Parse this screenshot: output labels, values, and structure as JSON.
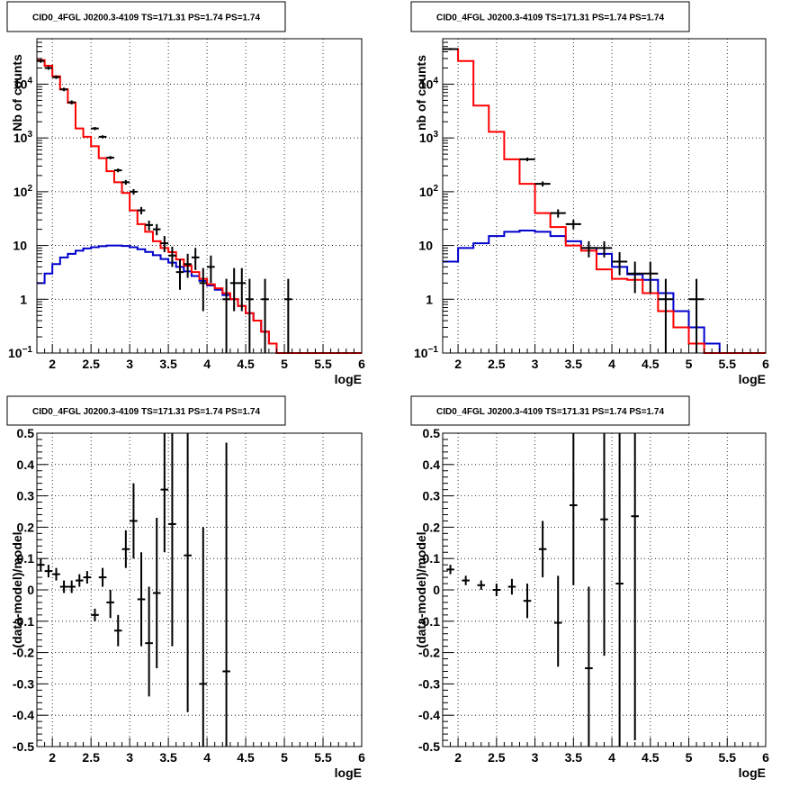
{
  "colors": {
    "data": "#000000",
    "total_model": "#ff0000",
    "component_model": "#0000cc",
    "grid": "#000000",
    "frame": "#000000"
  },
  "chart_data": [
    {
      "type": "line",
      "title": "CID0_4FGL J0200.3-4109 TS=171.31 PS=1.74 PS=1.74",
      "xlabel": "logE",
      "ylabel": "Nb of counts",
      "xlim": [
        1.8,
        6
      ],
      "ylim": [
        0.1,
        70000
      ],
      "log_y": true,
      "grid": true,
      "x_ticks": [
        "2",
        "2.5",
        "3",
        "3.5",
        "4",
        "4.5",
        "5",
        "5.5",
        "6"
      ],
      "y_ticks": [
        "10⁻¹",
        "1",
        "10",
        "10²",
        "10³",
        "10⁴"
      ],
      "total_model": {
        "edges": [
          1.8,
          1.9,
          2.0,
          2.1,
          2.2,
          2.3,
          2.4,
          2.5,
          2.6,
          2.7,
          2.8,
          2.9,
          3.0,
          3.1,
          3.2,
          3.3,
          3.4,
          3.5,
          3.6,
          3.7,
          3.8,
          3.9,
          4.0,
          4.1,
          4.2,
          4.3,
          4.4,
          4.5,
          4.6,
          4.7,
          4.8,
          4.9,
          5.0,
          5.1,
          5.2,
          5.3,
          5.4,
          5.5,
          5.6,
          5.7,
          5.8,
          5.9,
          6.0
        ],
        "values": [
          28000,
          22000,
          14000,
          8000,
          4500,
          1500,
          1050,
          700,
          420,
          240,
          150,
          95,
          45,
          25,
          18,
          12,
          9,
          7.5,
          5.5,
          4.2,
          3.2,
          2.4,
          1.9,
          1.6,
          1.3,
          1.0,
          0.75,
          0.55,
          0.4,
          0.25,
          0.15,
          0.1,
          0.1,
          0.1,
          0.1,
          0.1,
          0.1,
          0.1,
          0.1,
          0.1,
          0.1,
          0.1
        ]
      },
      "component_model": {
        "edges": [
          1.8,
          1.9,
          2.0,
          2.1,
          2.2,
          2.3,
          2.4,
          2.5,
          2.6,
          2.7,
          2.8,
          2.9,
          3.0,
          3.1,
          3.2,
          3.3,
          3.4,
          3.5,
          3.6,
          3.7,
          3.8,
          3.9,
          4.0,
          4.1,
          4.2,
          4.3,
          4.4,
          4.5,
          4.6,
          4.7,
          4.8,
          4.9,
          5.0,
          5.1,
          5.2,
          5.3,
          5.4,
          5.5,
          5.6,
          5.7,
          5.8,
          5.9,
          6.0
        ],
        "values": [
          2.0,
          3.0,
          4.5,
          6.0,
          7.0,
          8.0,
          8.8,
          9.3,
          9.7,
          10.0,
          10.0,
          9.8,
          9.3,
          8.5,
          7.6,
          6.6,
          5.6,
          4.8,
          4.0,
          3.3,
          2.7,
          2.2,
          1.8,
          1.5,
          1.2,
          1.0,
          0.75,
          0.55,
          0.4,
          0.25,
          0.15,
          0.1,
          0.1,
          0.1,
          0.1,
          0.1,
          0.1,
          0.1,
          0.1,
          0.1,
          0.1,
          0.1
        ]
      },
      "points": [
        {
          "x": 1.85,
          "y": 27000,
          "ylo": 25000,
          "yhi": 29000
        },
        {
          "x": 1.95,
          "y": 20000,
          "ylo": 18500,
          "yhi": 21500
        },
        {
          "x": 2.05,
          "y": 13500,
          "ylo": 12500,
          "yhi": 14500
        },
        {
          "x": 2.15,
          "y": 8000,
          "ylo": 7400,
          "yhi": 8600
        },
        {
          "x": 2.25,
          "y": 4600,
          "ylo": 4200,
          "yhi": 5000
        },
        {
          "x": 2.55,
          "y": 1500,
          "ylo": 1400,
          "yhi": 1600
        },
        {
          "x": 2.65,
          "y": 1050,
          "ylo": 980,
          "yhi": 1120
        },
        {
          "x": 2.75,
          "y": 430,
          "ylo": 400,
          "yhi": 460
        },
        {
          "x": 2.85,
          "y": 250,
          "ylo": 230,
          "yhi": 270
        },
        {
          "x": 2.95,
          "y": 150,
          "ylo": 135,
          "yhi": 165
        },
        {
          "x": 3.05,
          "y": 100,
          "ylo": 88,
          "yhi": 112
        },
        {
          "x": 3.15,
          "y": 45,
          "ylo": 38,
          "yhi": 52
        },
        {
          "x": 3.25,
          "y": 24,
          "ylo": 19,
          "yhi": 29
        },
        {
          "x": 3.35,
          "y": 20,
          "ylo": 15.5,
          "yhi": 25
        },
        {
          "x": 3.45,
          "y": 11,
          "ylo": 7.5,
          "yhi": 15
        },
        {
          "x": 3.55,
          "y": 6.5,
          "ylo": 4,
          "yhi": 9.5
        },
        {
          "x": 3.65,
          "y": 3.2,
          "ylo": 1.5,
          "yhi": 5.5
        },
        {
          "x": 3.75,
          "y": 4.5,
          "ylo": 2.5,
          "yhi": 7
        },
        {
          "x": 3.85,
          "y": 6,
          "ylo": 3.5,
          "yhi": 9
        },
        {
          "x": 3.95,
          "y": 2,
          "ylo": 0.6,
          "yhi": 3.8
        },
        {
          "x": 4.05,
          "y": 4,
          "ylo": 2,
          "yhi": 6.5
        },
        {
          "x": 4.25,
          "y": 1,
          "ylo": 0.1,
          "yhi": 2.4
        },
        {
          "x": 4.35,
          "y": 2,
          "ylo": 0.6,
          "yhi": 3.8
        },
        {
          "x": 4.45,
          "y": 2,
          "ylo": 0.6,
          "yhi": 3.8
        },
        {
          "x": 4.55,
          "y": 1,
          "ylo": 0.1,
          "yhi": 2.4
        },
        {
          "x": 4.75,
          "y": 1,
          "ylo": 0.1,
          "yhi": 2.4
        },
        {
          "x": 5.05,
          "y": 1,
          "ylo": 0.1,
          "yhi": 2.4
        }
      ]
    },
    {
      "type": "line",
      "title": "CID0_4FGL J0200.3-4109 TS=171.31 PS=1.74 PS=1.74",
      "xlabel": "logE",
      "ylabel": "nb of counts",
      "xlim": [
        1.8,
        6
      ],
      "ylim": [
        0.1,
        70000
      ],
      "log_y": true,
      "grid": true,
      "x_ticks": [
        "2",
        "2.5",
        "3",
        "3.5",
        "4",
        "4.5",
        "5",
        "5.5",
        "6"
      ],
      "y_ticks": [
        "10⁻¹",
        "1",
        "10",
        "10²",
        "10³",
        "10⁴"
      ],
      "total_model": {
        "edges": [
          1.8,
          2.0,
          2.2,
          2.4,
          2.6,
          2.8,
          3.0,
          3.2,
          3.4,
          3.6,
          3.8,
          4.0,
          4.2,
          4.4,
          4.6,
          4.8,
          5.0,
          5.2,
          5.4,
          5.6,
          5.8,
          6.0
        ],
        "values": [
          45000,
          27000,
          4000,
          1300,
          400,
          140,
          40,
          22,
          10,
          8,
          3.6,
          2.4,
          2.3,
          1.3,
          0.6,
          0.3,
          0.15,
          0.1,
          0.1,
          0.1,
          0.1
        ]
      },
      "component_model": {
        "edges": [
          1.8,
          2.0,
          2.2,
          2.4,
          2.6,
          2.8,
          3.0,
          3.2,
          3.4,
          3.6,
          3.8,
          4.0,
          4.2,
          4.4,
          4.6,
          4.8,
          5.0,
          5.2,
          5.4,
          5.6,
          5.8,
          6.0
        ],
        "values": [
          5,
          9,
          11,
          15,
          18,
          19,
          18,
          15,
          12,
          9,
          7,
          4,
          2.9,
          2.3,
          1.3,
          0.6,
          0.3,
          0.15,
          0.1,
          0.1,
          0.1
        ]
      },
      "points": [
        {
          "x": 1.9,
          "y": 45000,
          "ylo": 43000,
          "yhi": 47000
        },
        {
          "x": 2.9,
          "y": 400,
          "ylo": 370,
          "yhi": 430
        },
        {
          "x": 3.1,
          "y": 140,
          "ylo": 125,
          "yhi": 155
        },
        {
          "x": 3.3,
          "y": 40,
          "ylo": 33,
          "yhi": 47
        },
        {
          "x": 3.5,
          "y": 25,
          "ylo": 20,
          "yhi": 30
        },
        {
          "x": 3.7,
          "y": 9,
          "ylo": 6,
          "yhi": 12
        },
        {
          "x": 3.9,
          "y": 9,
          "ylo": 6,
          "yhi": 12
        },
        {
          "x": 4.1,
          "y": 5,
          "ylo": 2.8,
          "yhi": 7.5
        },
        {
          "x": 4.3,
          "y": 3,
          "ylo": 1.3,
          "yhi": 5
        },
        {
          "x": 4.5,
          "y": 3,
          "ylo": 1.3,
          "yhi": 5
        },
        {
          "x": 4.7,
          "y": 1,
          "ylo": 0.1,
          "yhi": 2.4
        },
        {
          "x": 5.1,
          "y": 1,
          "ylo": 0.1,
          "yhi": 2.4
        }
      ]
    },
    {
      "type": "scatter",
      "title": "CID0_4FGL J0200.3-4109 TS=171.31 PS=1.74 PS=1.74",
      "xlabel": "logE",
      "ylabel": "(data-model)/model",
      "xlim": [
        1.8,
        6
      ],
      "ylim": [
        -0.5,
        0.5
      ],
      "log_y": false,
      "grid": true,
      "x_ticks": [
        "2",
        "2.5",
        "3",
        "3.5",
        "4",
        "4.5",
        "5",
        "5.5",
        "6"
      ],
      "y_ticks": [
        "-0.5",
        "-0.4",
        "-0.3",
        "-0.2",
        "-0.1",
        "0",
        "0.1",
        "0.2",
        "0.3",
        "0.4",
        "0.5"
      ],
      "points": [
        {
          "x": 1.85,
          "y": 0.08,
          "ylo": 0.06,
          "yhi": 0.1
        },
        {
          "x": 1.95,
          "y": 0.06,
          "ylo": 0.04,
          "yhi": 0.08
        },
        {
          "x": 2.05,
          "y": 0.05,
          "ylo": 0.03,
          "yhi": 0.07
        },
        {
          "x": 2.15,
          "y": 0.01,
          "ylo": -0.01,
          "yhi": 0.03
        },
        {
          "x": 2.25,
          "y": 0.01,
          "ylo": -0.01,
          "yhi": 0.03
        },
        {
          "x": 2.35,
          "y": 0.03,
          "ylo": 0.01,
          "yhi": 0.05
        },
        {
          "x": 2.45,
          "y": 0.04,
          "ylo": 0.02,
          "yhi": 0.06
        },
        {
          "x": 2.55,
          "y": -0.08,
          "ylo": -0.1,
          "yhi": -0.06
        },
        {
          "x": 2.65,
          "y": 0.04,
          "ylo": 0.01,
          "yhi": 0.07
        },
        {
          "x": 2.75,
          "y": -0.04,
          "ylo": -0.09,
          "yhi": 0.0
        },
        {
          "x": 2.85,
          "y": -0.13,
          "ylo": -0.18,
          "yhi": -0.08
        },
        {
          "x": 2.95,
          "y": 0.13,
          "ylo": 0.07,
          "yhi": 0.19
        },
        {
          "x": 3.05,
          "y": 0.22,
          "ylo": 0.1,
          "yhi": 0.34
        },
        {
          "x": 3.15,
          "y": -0.03,
          "ylo": -0.18,
          "yhi": 0.12
        },
        {
          "x": 3.25,
          "y": -0.17,
          "ylo": -0.34,
          "yhi": 0.01
        },
        {
          "x": 3.35,
          "y": -0.01,
          "ylo": -0.25,
          "yhi": 0.23
        },
        {
          "x": 3.45,
          "y": 0.32,
          "ylo": 0.12,
          "yhi": 0.5
        },
        {
          "x": 3.55,
          "y": 0.21,
          "ylo": -0.18,
          "yhi": 0.5
        },
        {
          "x": 3.75,
          "y": 0.11,
          "ylo": -0.39,
          "yhi": 0.5
        },
        {
          "x": 3.95,
          "y": -0.3,
          "ylo": -0.5,
          "yhi": 0.2
        },
        {
          "x": 4.25,
          "y": -0.26,
          "ylo": -0.5,
          "yhi": 0.47
        }
      ]
    },
    {
      "type": "scatter",
      "title": "CID0_4FGL J0200.3-4109 TS=171.31 PS=1.74 PS=1.74",
      "xlabel": "logE",
      "ylabel": "(data-model)/model",
      "xlim": [
        1.8,
        6
      ],
      "ylim": [
        -0.5,
        0.5
      ],
      "log_y": false,
      "grid": true,
      "x_ticks": [
        "2",
        "2.5",
        "3",
        "3.5",
        "4",
        "4.5",
        "5",
        "5.5",
        "6"
      ],
      "y_ticks": [
        "-0.5",
        "-0.4",
        "-0.3",
        "-0.2",
        "-0.1",
        "0",
        "0.1",
        "0.2",
        "0.3",
        "0.4",
        "0.5"
      ],
      "points": [
        {
          "x": 1.9,
          "y": 0.065,
          "ylo": 0.05,
          "yhi": 0.08
        },
        {
          "x": 2.1,
          "y": 0.03,
          "ylo": 0.015,
          "yhi": 0.045
        },
        {
          "x": 2.3,
          "y": 0.015,
          "ylo": 0.0,
          "yhi": 0.03
        },
        {
          "x": 2.5,
          "y": 0.0,
          "ylo": -0.02,
          "yhi": 0.02
        },
        {
          "x": 2.7,
          "y": 0.01,
          "ylo": -0.015,
          "yhi": 0.035
        },
        {
          "x": 2.9,
          "y": -0.035,
          "ylo": -0.09,
          "yhi": 0.02
        },
        {
          "x": 3.1,
          "y": 0.13,
          "ylo": 0.04,
          "yhi": 0.22
        },
        {
          "x": 3.3,
          "y": -0.105,
          "ylo": -0.245,
          "yhi": 0.045
        },
        {
          "x": 3.5,
          "y": 0.27,
          "ylo": 0.015,
          "yhi": 0.5
        },
        {
          "x": 3.7,
          "y": -0.25,
          "ylo": -0.5,
          "yhi": 0.01
        },
        {
          "x": 3.9,
          "y": 0.225,
          "ylo": -0.21,
          "yhi": 0.5
        },
        {
          "x": 4.1,
          "y": 0.02,
          "ylo": -0.5,
          "yhi": 0.5
        },
        {
          "x": 4.3,
          "y": 0.235,
          "ylo": -0.48,
          "yhi": 0.5
        }
      ]
    }
  ]
}
